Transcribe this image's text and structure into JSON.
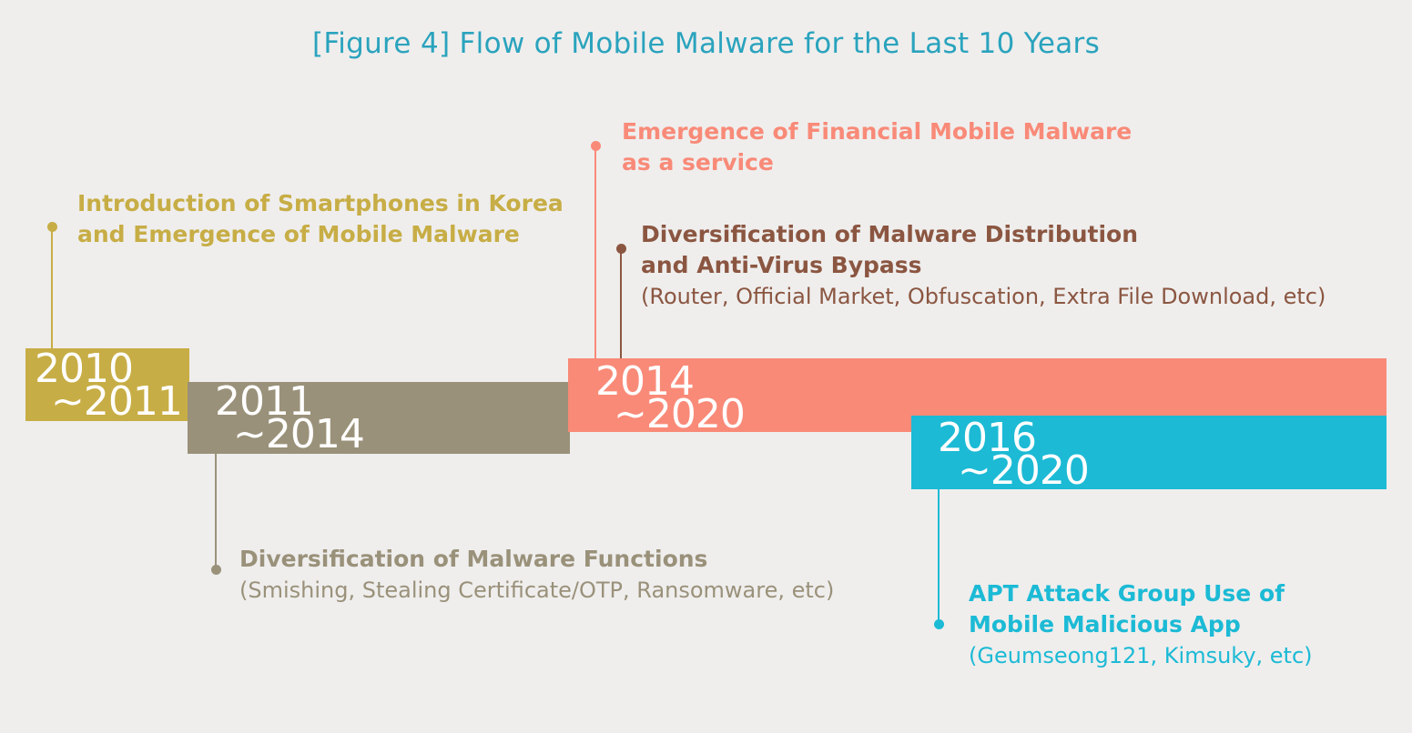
{
  "title": "[Figure 4] Flow of Mobile Malware for the Last 10 Years",
  "colors": {
    "title": "#2aa3bd",
    "period_2010_2011": "#c7ad45",
    "period_2011_2014": "#9a917a",
    "period_2014_2020": "#f98a78",
    "period_2016_2020": "#1cbad5",
    "note_2014_distribution": "#8b5641",
    "background": "#efeeed"
  },
  "periods": [
    {
      "line1": "2010",
      "line2": "~2011"
    },
    {
      "line1": "2011",
      "line2": "~2014"
    },
    {
      "line1": "2014",
      "line2": "~2020"
    },
    {
      "line1": "2016",
      "line2": "~2020"
    }
  ],
  "events": {
    "smartphones": {
      "line1": "Introduction of Smartphones in Korea",
      "line2": "and Emergence of Mobile Malware"
    },
    "functions": {
      "line1": "Diversification of Malware Functions",
      "detail": "(Smishing, Stealing Certificate/OTP, Ransomware, etc)"
    },
    "financial": {
      "line1": "Emergence of Financial Mobile Malware",
      "line2": "as a service"
    },
    "distribution": {
      "line1": "Diversification of Malware Distribution",
      "line2": "and Anti-Virus Bypass",
      "detail": "(Router, Official Market, Obfuscation, Extra File Download, etc)"
    },
    "apt": {
      "line1": "APT Attack Group Use of",
      "line2": "Mobile Malicious App",
      "detail": "(Geumseong121, Kimsuky, etc)"
    }
  }
}
